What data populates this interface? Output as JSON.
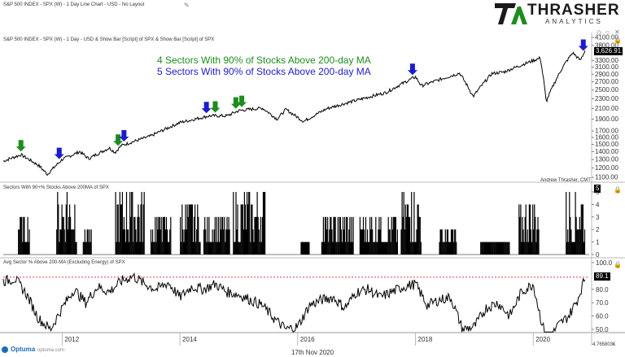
{
  "header": {
    "title_line": "S&P 500 INDEX - SPX (W) - 1 Day Line Chart - USD - No Layout",
    "subtitle_line": "S&P 500 INDEX - SPX (W) - 1 Day - USD & Show Bar [Script] of SPX & Show Bar [Script] of SPX"
  },
  "logo": {
    "mark": "TA",
    "name": "THRASHER",
    "sub": "ANALYTICS"
  },
  "annotations": {
    "green": "4 Sectors With 90% of Stocks Above 200-day MA",
    "blue": "5 Sectors With 90% of Stocks Above 200-day MA",
    "author": "Andrew Thrasher, CMT"
  },
  "footer": {
    "brand": "Optuma",
    "brand_url": "optuma.com",
    "date": "17th Nov 2020",
    "corner_value": "4.765803€"
  },
  "colors": {
    "green": "#1f8c1f",
    "blue": "#1c1ccc",
    "threshold": "#cc0000",
    "line": "#000000"
  },
  "chart_data": [
    {
      "type": "line",
      "title": "S&P 500 INDEX - SPX (W) - 1 Day Line Chart",
      "scale": "log",
      "ylim": [
        1100,
        4100
      ],
      "y_ticks": [
        "4100.00",
        "3800.00",
        "3300.00",
        "3100.00",
        "2900.00",
        "2700.00",
        "2500.00",
        "2300.00",
        "2100.00",
        "1900.00",
        "1700.00",
        "1600.00",
        "1500.00",
        "1400.00",
        "1300.00",
        "1200.00",
        "1100.00"
      ],
      "last_value_label": "3,626.91",
      "x_ticks": [
        "2012",
        "2014",
        "2016",
        "2018",
        "2020"
      ],
      "x": [
        2011.0,
        2011.3,
        2011.6,
        2011.75,
        2012.0,
        2012.3,
        2012.45,
        2012.8,
        2012.9,
        2013.0,
        2013.5,
        2014.0,
        2014.5,
        2014.8,
        2015.0,
        2015.4,
        2015.65,
        2015.8,
        2016.1,
        2016.5,
        2017.0,
        2017.5,
        2018.0,
        2018.1,
        2018.75,
        2018.98,
        2019.3,
        2019.5,
        2019.9,
        2020.12,
        2020.22,
        2020.5,
        2020.67,
        2020.8,
        2020.88
      ],
      "values": [
        1280,
        1360,
        1230,
        1130,
        1300,
        1400,
        1310,
        1450,
        1390,
        1480,
        1620,
        1840,
        1960,
        1960,
        2060,
        2110,
        1900,
        2080,
        1860,
        2100,
        2270,
        2440,
        2830,
        2600,
        2930,
        2350,
        2920,
        2960,
        3230,
        3380,
        2240,
        3100,
        3550,
        3300,
        3627
      ],
      "green_arrows_x": [
        2011.3,
        2012.95,
        2014.6,
        2014.95,
        2015.05
      ],
      "blue_arrows_x": [
        2011.95,
        2013.05,
        2014.45,
        2017.95,
        2020.85
      ]
    },
    {
      "type": "bar",
      "title": "Sectors With 90+% Stocks Above 200MA of SPX",
      "ylim": [
        0,
        5
      ],
      "y_ticks": [
        "5",
        "4",
        "3",
        "2",
        "1",
        "0"
      ],
      "last_value_label": "5",
      "clusters": [
        {
          "start": 2011.25,
          "end": 2011.45,
          "max": 3
        },
        {
          "start": 2011.9,
          "end": 2012.25,
          "max": 5
        },
        {
          "start": 2012.35,
          "end": 2012.5,
          "max": 2
        },
        {
          "start": 2012.9,
          "end": 2013.4,
          "max": 5
        },
        {
          "start": 2013.5,
          "end": 2013.85,
          "max": 3
        },
        {
          "start": 2014.0,
          "end": 2014.35,
          "max": 4
        },
        {
          "start": 2014.4,
          "end": 2014.85,
          "max": 3
        },
        {
          "start": 2014.9,
          "end": 2015.45,
          "max": 5
        },
        {
          "start": 2016.05,
          "end": 2016.2,
          "max": 1
        },
        {
          "start": 2016.4,
          "end": 2016.95,
          "max": 3
        },
        {
          "start": 2017.05,
          "end": 2017.7,
          "max": 3
        },
        {
          "start": 2017.75,
          "end": 2018.1,
          "max": 5
        },
        {
          "start": 2018.4,
          "end": 2018.7,
          "max": 2
        },
        {
          "start": 2019.1,
          "end": 2019.6,
          "max": 1
        },
        {
          "start": 2019.75,
          "end": 2020.1,
          "max": 4
        },
        {
          "start": 2020.55,
          "end": 2020.88,
          "max": 5
        }
      ]
    },
    {
      "type": "line",
      "title": "Avg Sector % Above 200-MA (Excluding Energy) of SPX",
      "ylim": [
        50,
        100
      ],
      "y_ticks": [
        "100.0",
        "80.0",
        "70.0",
        "60.0",
        "50.0"
      ],
      "last_value_label": "89.1",
      "threshold": 89.1,
      "x": [
        2011.0,
        2011.2,
        2011.4,
        2011.6,
        2011.8,
        2012.0,
        2012.2,
        2012.4,
        2012.6,
        2012.8,
        2013.0,
        2013.2,
        2013.4,
        2013.6,
        2013.8,
        2014.0,
        2014.2,
        2014.4,
        2014.6,
        2014.8,
        2015.0,
        2015.2,
        2015.4,
        2015.6,
        2015.8,
        2016.0,
        2016.2,
        2016.4,
        2016.6,
        2016.8,
        2017.0,
        2017.2,
        2017.4,
        2017.6,
        2017.8,
        2018.0,
        2018.2,
        2018.4,
        2018.6,
        2018.8,
        2019.0,
        2019.2,
        2019.4,
        2019.6,
        2019.8,
        2020.0,
        2020.15,
        2020.25,
        2020.4,
        2020.6,
        2020.75,
        2020.88
      ],
      "values": [
        86,
        88,
        76,
        58,
        50,
        66,
        80,
        70,
        82,
        78,
        86,
        90,
        84,
        80,
        85,
        74,
        82,
        80,
        84,
        78,
        76,
        72,
        68,
        58,
        50,
        52,
        68,
        72,
        74,
        66,
        78,
        80,
        74,
        78,
        82,
        84,
        68,
        72,
        74,
        50,
        52,
        66,
        70,
        60,
        78,
        84,
        54,
        40,
        52,
        60,
        72,
        89
      ]
    }
  ]
}
